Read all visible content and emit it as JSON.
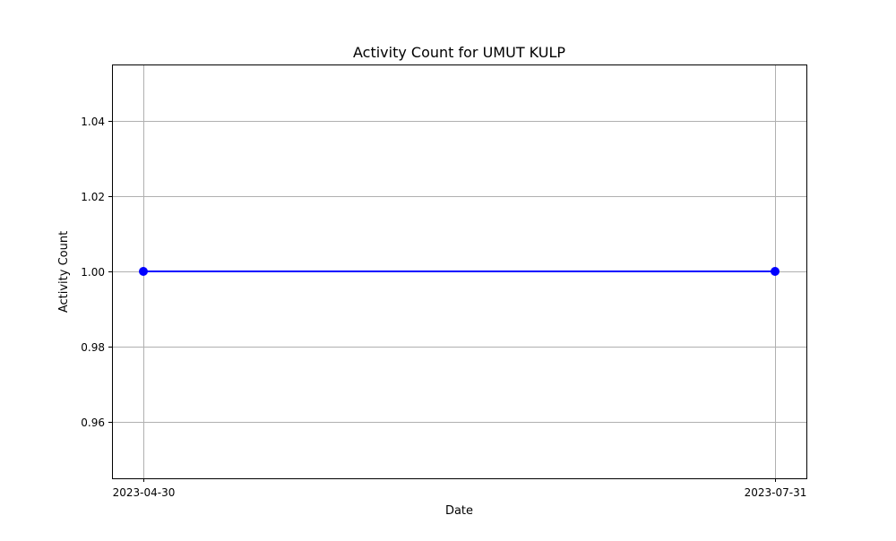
{
  "chart_data": {
    "type": "line",
    "title": "Activity Count for UMUT KULP",
    "xlabel": "Date",
    "ylabel": "Activity Count",
    "x": [
      "2023-04-30",
      "2023-07-31"
    ],
    "x_ticks": [
      "2023-04-30",
      "2023-07-31"
    ],
    "series": [
      {
        "color": "#0000ff",
        "marker": "circle",
        "values": [
          1,
          1
        ]
      }
    ],
    "ylim": [
      0.945,
      1.055
    ],
    "y_ticks": [
      0.96,
      0.98,
      1.0,
      1.02,
      1.04
    ],
    "y_tick_labels": [
      "0.96",
      "0.98",
      "1.00",
      "1.02",
      "1.04"
    ],
    "grid": true,
    "grid_color": "#b0b0b0",
    "legend": false
  }
}
